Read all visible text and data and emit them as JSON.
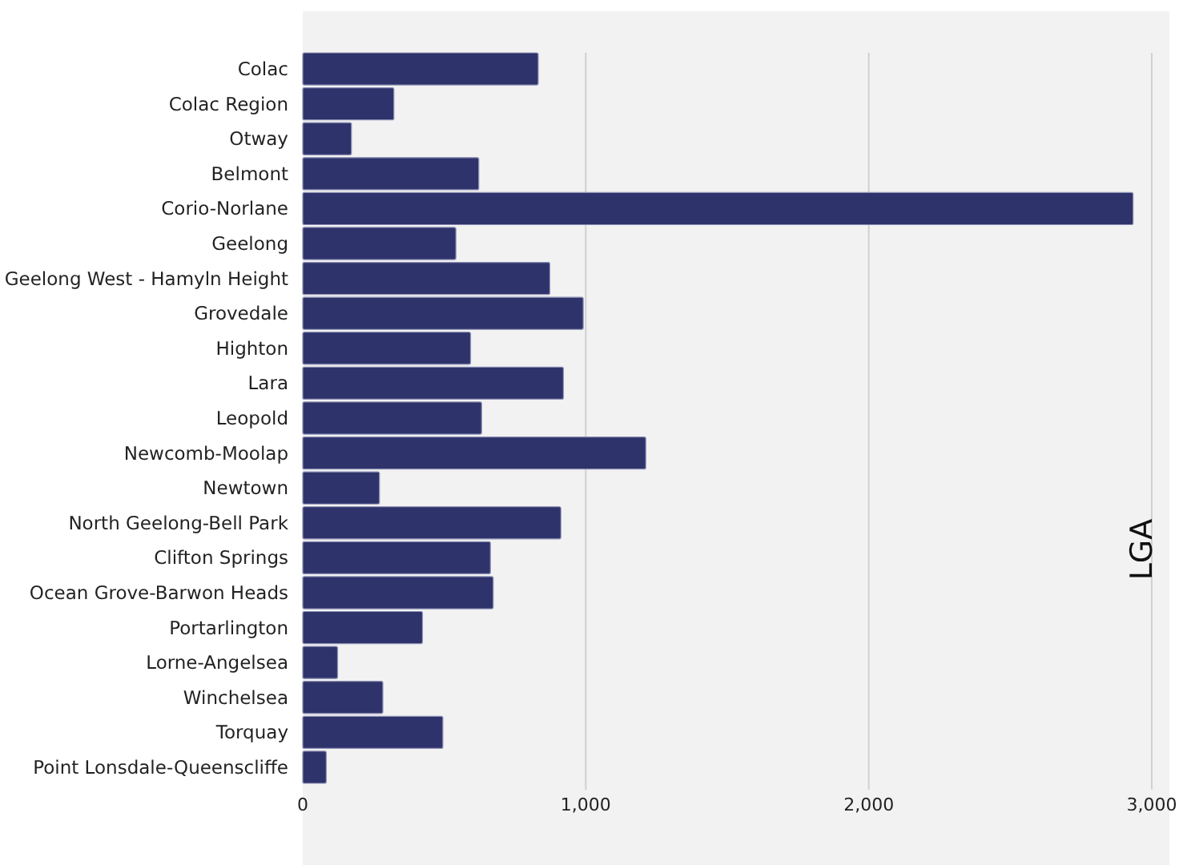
{
  "chart_data": {
    "type": "bar",
    "orientation": "horizontal",
    "ylabel": "LGA",
    "categories": [
      "Colac",
      "Colac Region",
      "Otway",
      "Belmont",
      "Corio-Norlane",
      "Geelong",
      "Geelong West - Hamyln Height",
      "Grovedale",
      "Highton",
      "Lara",
      "Leopold",
      "Newcomb-Moolap",
      "Newtown",
      "North Geelong-Bell Park",
      "Clifton Springs",
      "Ocean Grove-Barwon Heads",
      "Portarlington",
      "Lorne-Angelsea",
      "Winchelsea",
      "Torquay",
      "Point Lonsdale-Queenscliffe"
    ],
    "values": [
      832,
      322,
      172,
      622,
      2934,
      541,
      873,
      991,
      593,
      921,
      632,
      1212,
      271,
      912,
      663,
      673,
      423,
      123,
      283,
      495,
      83
    ],
    "color": "#2f336b",
    "xlim": [
      0,
      3000
    ],
    "xticks": [
      {
        "value": 0,
        "label": "0"
      },
      {
        "value": 1000,
        "label": "1,000"
      },
      {
        "value": 2000,
        "label": "2,000"
      },
      {
        "value": 3000,
        "label": "3,000"
      }
    ],
    "grid": "x"
  }
}
